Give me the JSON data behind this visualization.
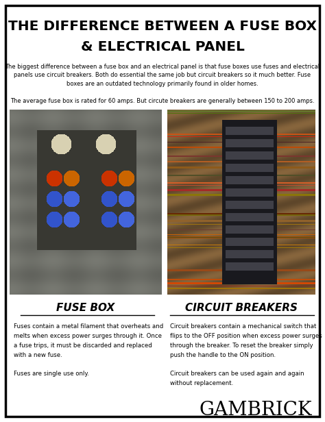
{
  "title_line1": "THE DIFFERENCE BETWEEN A FUSE BOX",
  "title_line2": "& ELECTRICAL PANEL",
  "subtitle1": "The biggest difference between a fuse box and an electrical panel is that fuse boxes use fuses and electrical\npanels use circuit breakers. Both do essential the same job but circuit breakers so it much better. Fuse\nboxes are an outdated technology primarily found in older homes.",
  "subtitle2": "The average fuse box is rated for 60 amps. But circute breakers are generally between 150 to 200 amps.",
  "fuse_box_label": "FUSE BOX",
  "circuit_label": "CIRCUIT BREAKERS",
  "fuse_desc": "Fuses contain a metal filament that overheats and\nmelts when excess power surges through it. Once\na fuse trips, it must be discarded and replaced\nwith a new fuse.\n\nFuses are single use only.",
  "circuit_desc": "Circuit breakers contain a mechanical switch that\nflips to the OFF position when excess power surges\nthrough the breaker. To reset the breaker simply\npush the handle to the ON position.\n\nCircuit breakers can be used again and again\nwithout replacement.",
  "brand": "GAMBRICK",
  "bg_color": "#ffffff",
  "border_color": "#000000",
  "title_color": "#000000",
  "text_color": "#000000",
  "fig_width": 4.74,
  "fig_height": 6.16,
  "dpi": 100
}
